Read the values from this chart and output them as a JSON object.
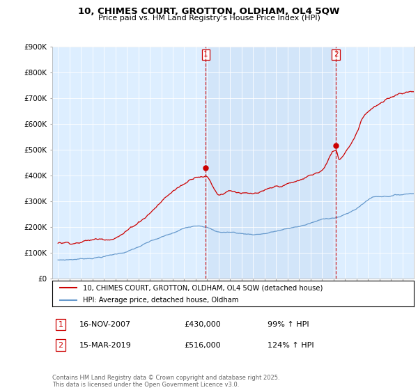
{
  "title": "10, CHIMES COURT, GROTTON, OLDHAM, OL4 5QW",
  "subtitle": "Price paid vs. HM Land Registry's House Price Index (HPI)",
  "property_label": "10, CHIMES COURT, GROTTON, OLDHAM, OL4 5QW (detached house)",
  "hpi_label": "HPI: Average price, detached house, Oldham",
  "sale1_date": "16-NOV-2007",
  "sale1_price": "£430,000",
  "sale1_hpi": "99% ↑ HPI",
  "sale2_date": "15-MAR-2019",
  "sale2_price": "£516,000",
  "sale2_hpi": "124% ↑ HPI",
  "sale1_year": 2007.88,
  "sale1_price_val": 430000,
  "sale2_year": 2019.21,
  "sale2_price_val": 516000,
  "property_color": "#cc0000",
  "hpi_color": "#6699cc",
  "dashed_line_color": "#cc0000",
  "plot_bg_color": "#ddeeff",
  "shaded_bg_color": "#cce0f5",
  "ylim": [
    0,
    900000
  ],
  "yticks": [
    0,
    100000,
    200000,
    300000,
    400000,
    500000,
    600000,
    700000,
    800000,
    900000
  ],
  "xmin": 1994.5,
  "xmax": 2026.0,
  "footnote": "Contains HM Land Registry data © Crown copyright and database right 2025.\nThis data is licensed under the Open Government Licence v3.0."
}
